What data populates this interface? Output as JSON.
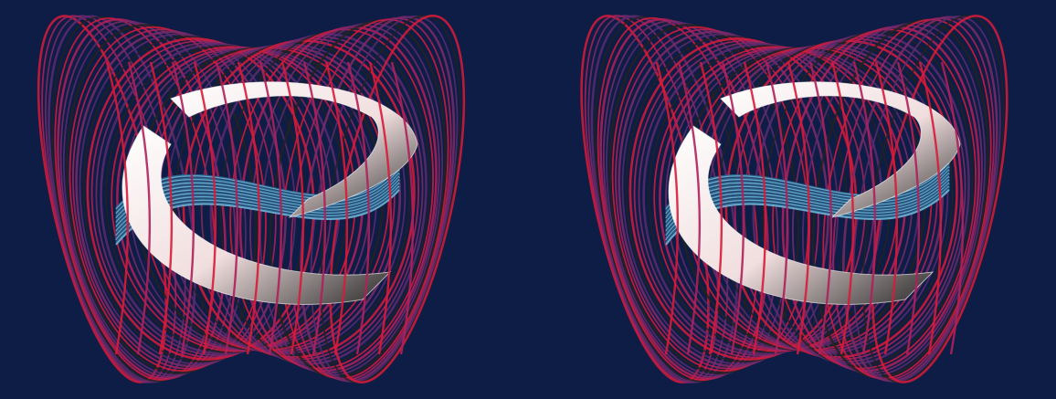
{
  "scene": {
    "background_color": "#0e1d45",
    "description_tags": [
      "stereo-pair",
      "torus-field-lines",
      "hopf-fibration-like"
    ],
    "views": [
      {
        "id": "left-view"
      },
      {
        "id": "right-view"
      }
    ],
    "palette": {
      "outer_rings": [
        "#d81b3a",
        "#b0205a",
        "#7a2a6a",
        "#5a2a6f",
        "#222222"
      ],
      "inner_band": "#f4eaea",
      "inner_band_shadow": "#1a1a1a",
      "inner_tube": [
        "#2f6d96",
        "#6fb2d6",
        "#1f3f66"
      ]
    }
  }
}
